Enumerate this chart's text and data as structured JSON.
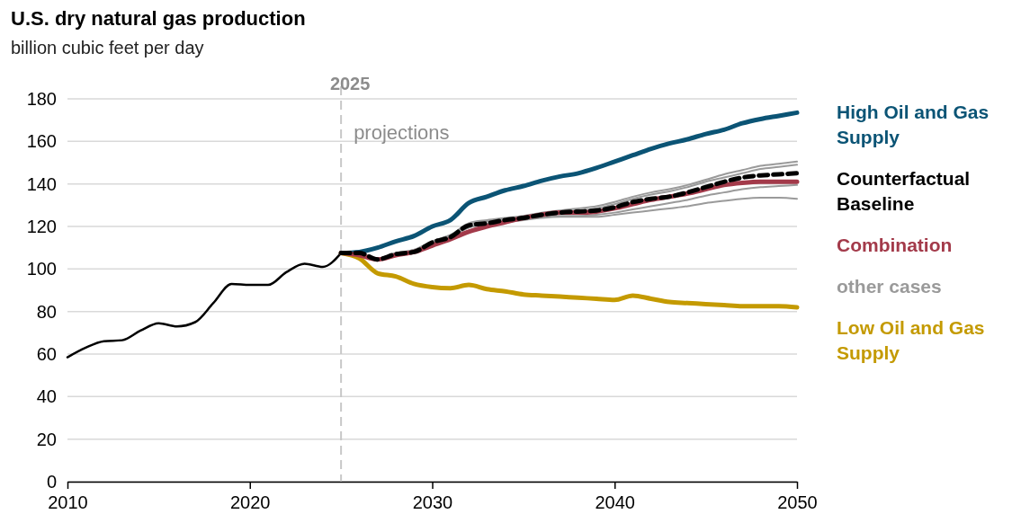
{
  "chart_data": {
    "type": "line",
    "title": "U.S. dry natural gas production",
    "subtitle": "billion cubic feet per day",
    "xlim": [
      2010,
      2050
    ],
    "xticks": [
      2010,
      2020,
      2030,
      2040,
      2050
    ],
    "ylim": [
      0,
      180
    ],
    "yticks": [
      0,
      20,
      40,
      60,
      80,
      100,
      120,
      140,
      160,
      180
    ],
    "grid": "y",
    "legend": "right",
    "marker": "none",
    "ref_lines": [
      {
        "axis": "x",
        "value": 2025,
        "label": "2025",
        "color": "#c8c8c8",
        "line_style": "dashed"
      }
    ],
    "annotations": [
      "projections"
    ],
    "series": [
      {
        "color": "#000000",
        "x": [
          2010,
          2011,
          2012,
          2013,
          2014,
          2015,
          2016,
          2017,
          2018,
          2019,
          2020,
          2021,
          2022,
          2023,
          2024,
          2025
        ],
        "values": [
          58.5,
          63,
          66,
          66.5,
          71,
          74.5,
          73,
          75,
          84,
          93,
          92.5,
          92.5,
          98.5,
          102.5,
          101,
          107.5
        ]
      },
      {
        "color": "#9a9a9a",
        "x": [
          2025,
          2026,
          2027,
          2028,
          2029,
          2030,
          2031,
          2032,
          2033,
          2034,
          2035,
          2036,
          2037,
          2038,
          2039,
          2040,
          2041,
          2042,
          2043,
          2044,
          2045,
          2046,
          2047,
          2048,
          2049,
          2050
        ],
        "values": [
          107.5,
          107.5,
          105,
          107.5,
          109,
          113,
          116,
          121.5,
          123,
          124,
          125,
          126.5,
          127.5,
          128.5,
          129.5,
          131.5,
          134,
          136,
          137.5,
          139.5,
          142,
          144.5,
          146.5,
          148.5,
          149.5,
          150.5
        ]
      },
      {
        "color": "#9a9a9a",
        "x": [
          2025,
          2026,
          2027,
          2028,
          2029,
          2030,
          2031,
          2032,
          2033,
          2034,
          2035,
          2036,
          2037,
          2038,
          2039,
          2040,
          2041,
          2042,
          2043,
          2044,
          2045,
          2046,
          2047,
          2048,
          2049,
          2050
        ],
        "values": [
          107.5,
          107.5,
          105,
          107.5,
          109,
          113,
          116,
          121,
          122.5,
          123.5,
          124.5,
          126,
          127,
          127.5,
          128.5,
          130.5,
          133,
          135,
          136.5,
          138.5,
          141,
          143,
          145,
          147,
          148,
          149
        ]
      },
      {
        "color": "#9a9a9a",
        "x": [
          2025,
          2026,
          2027,
          2028,
          2029,
          2030,
          2031,
          2032,
          2033,
          2034,
          2035,
          2036,
          2037,
          2038,
          2039,
          2040,
          2041,
          2042,
          2043,
          2044,
          2045,
          2046,
          2047,
          2048,
          2049,
          2050
        ],
        "values": [
          107.5,
          107.5,
          105,
          107,
          108.5,
          112,
          115,
          119.5,
          121,
          122.5,
          123.5,
          124.5,
          125,
          125,
          125.5,
          126.5,
          128,
          129.5,
          131,
          132.5,
          134.5,
          136,
          137.5,
          138.5,
          139,
          139.5
        ]
      },
      {
        "name": "other cases",
        "color": "#9a9a9a",
        "x": [
          2025,
          2026,
          2027,
          2028,
          2029,
          2030,
          2031,
          2032,
          2033,
          2034,
          2035,
          2036,
          2037,
          2038,
          2039,
          2040,
          2041,
          2042,
          2043,
          2044,
          2045,
          2046,
          2047,
          2048,
          2049,
          2050
        ],
        "values": [
          107.5,
          107.5,
          105,
          107,
          108.5,
          112,
          115,
          119.5,
          121,
          122,
          123,
          124,
          124.5,
          124.5,
          124.5,
          125.5,
          126.5,
          127.5,
          128.5,
          129.5,
          131,
          132,
          133,
          133.5,
          133.5,
          133
        ]
      },
      {
        "name": "High Oil and Gas Supply",
        "color": "#0b5475",
        "x": [
          2025,
          2026,
          2027,
          2028,
          2029,
          2030,
          2031,
          2032,
          2033,
          2034,
          2035,
          2036,
          2037,
          2038,
          2039,
          2040,
          2041,
          2042,
          2043,
          2044,
          2045,
          2046,
          2047,
          2048,
          2049,
          2050
        ],
        "values": [
          107.5,
          108,
          110,
          113,
          115.5,
          120,
          123,
          131,
          134,
          137,
          139,
          141.5,
          143.5,
          145,
          147.5,
          150.5,
          153.5,
          156.5,
          159,
          161,
          163.5,
          165.5,
          168.5,
          170.5,
          172,
          173.5
        ]
      },
      {
        "name": "Low Oil and Gas Supply",
        "color": "#c49a00",
        "x": [
          2025,
          2026,
          2027,
          2028,
          2029,
          2030,
          2031,
          2032,
          2033,
          2034,
          2035,
          2036,
          2037,
          2038,
          2039,
          2040,
          2041,
          2042,
          2043,
          2044,
          2045,
          2046,
          2047,
          2048,
          2049,
          2050
        ],
        "values": [
          107.5,
          105,
          98,
          96.5,
          93,
          91.5,
          91,
          92.5,
          90.5,
          89.5,
          88,
          87.5,
          87,
          86.5,
          86,
          85.5,
          87.5,
          86,
          84.5,
          84,
          83.5,
          83,
          82.5,
          82.5,
          82.5,
          82
        ]
      },
      {
        "name": "Combination",
        "color": "#a33a4a",
        "x": [
          2025,
          2026,
          2027,
          2028,
          2029,
          2030,
          2031,
          2032,
          2033,
          2034,
          2035,
          2036,
          2037,
          2038,
          2039,
          2040,
          2041,
          2042,
          2043,
          2044,
          2045,
          2046,
          2047,
          2048,
          2049,
          2050
        ],
        "values": [
          107.5,
          106.5,
          104.5,
          106.5,
          108,
          111,
          114,
          117.5,
          120,
          122,
          124,
          125.5,
          126.5,
          126.5,
          127,
          128.5,
          130.5,
          132.5,
          134,
          135.5,
          137.5,
          139.5,
          140.5,
          141,
          141,
          141
        ]
      },
      {
        "name": "Counterfactual Baseline",
        "color": "#000000",
        "line_style": "dashed",
        "x": [
          2025,
          2026,
          2027,
          2028,
          2029,
          2030,
          2031,
          2032,
          2033,
          2034,
          2035,
          2036,
          2037,
          2038,
          2039,
          2040,
          2041,
          2042,
          2043,
          2044,
          2045,
          2046,
          2047,
          2048,
          2049,
          2050
        ],
        "values": [
          107.5,
          107.5,
          104.5,
          107,
          108,
          112.5,
          115,
          120.5,
          121.5,
          123,
          124,
          125.5,
          126.5,
          127,
          127.5,
          129,
          131.5,
          133,
          134,
          136,
          138.5,
          141,
          143,
          144,
          144.5,
          145
        ]
      }
    ]
  }
}
